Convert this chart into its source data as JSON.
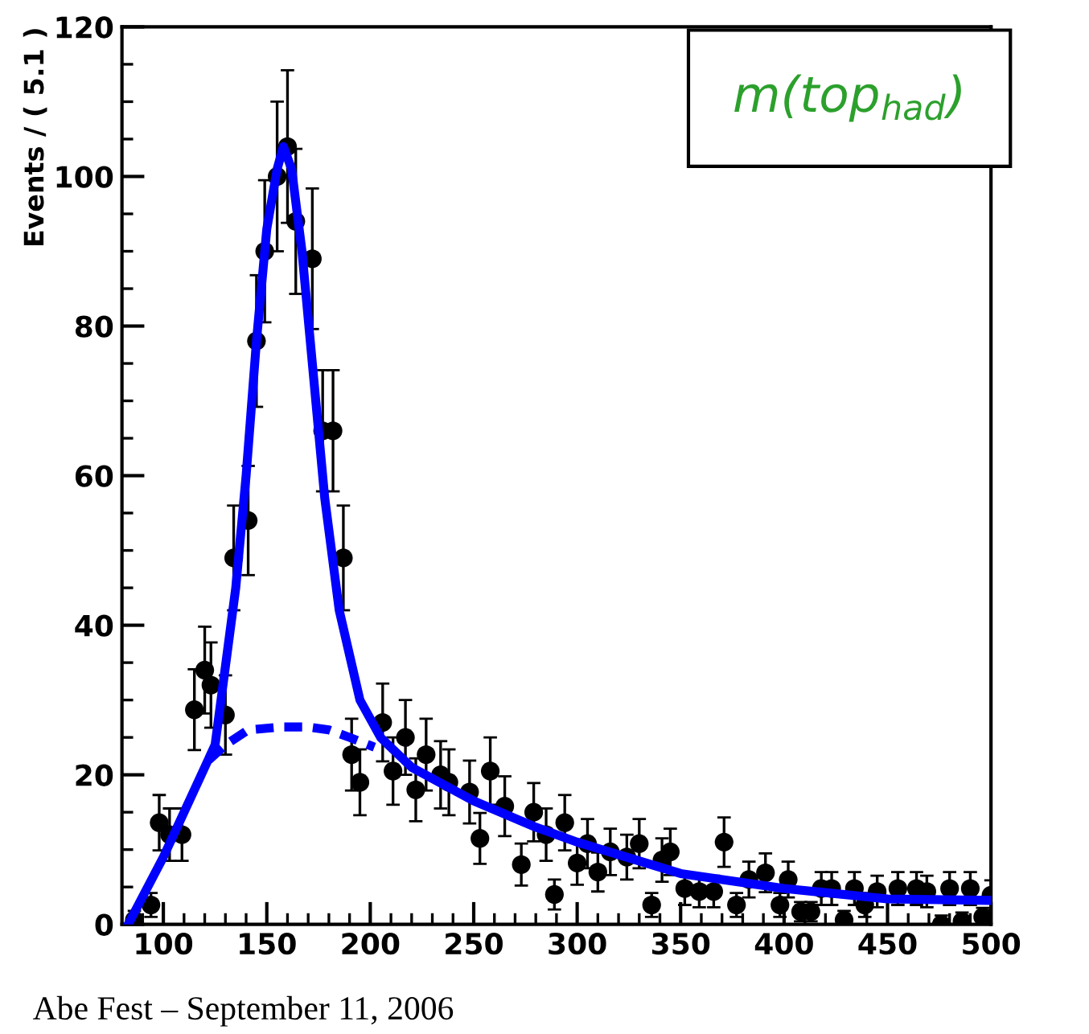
{
  "chart_data": {
    "type": "scatter",
    "title": "m(top$_{had}$)",
    "ylabel": "Events / ( 5.1 )",
    "annotations": [
      "Abe Fest – September 11, 2006"
    ],
    "xlim": [
      80,
      500
    ],
    "ylim": [
      0,
      120
    ],
    "xticks": [
      100,
      150,
      200,
      250,
      300,
      350,
      400,
      450,
      500
    ],
    "yticks": [
      0,
      20,
      40,
      60,
      80,
      100,
      120
    ],
    "grid": false,
    "legend": false,
    "series": [
      {
        "color": "#000000",
        "marker": "circle",
        "x": [
          86,
          94,
          98,
          103,
          109,
          115,
          120,
          123,
          130,
          134,
          141,
          145,
          149,
          155,
          160,
          164,
          172,
          177,
          182,
          187,
          191,
          195,
          206,
          211,
          217,
          222,
          227,
          234,
          238,
          248,
          253,
          258,
          265,
          273,
          279,
          285,
          289,
          294,
          300,
          305,
          310,
          316,
          324,
          330,
          336,
          341,
          345,
          352,
          359,
          366,
          371,
          377,
          383,
          391,
          398,
          402,
          408,
          413,
          418,
          423,
          429,
          434,
          439,
          445,
          455,
          464,
          469,
          476,
          480,
          486,
          490,
          496,
          500
        ],
        "values": [
          0.6,
          2.6,
          13.6,
          12,
          12,
          28.7,
          34,
          32,
          28,
          49,
          54,
          78,
          90,
          100,
          104,
          94,
          89,
          66,
          66,
          49,
          22.7,
          19,
          27,
          20.5,
          25,
          18,
          22.7,
          20,
          19,
          17.7,
          11.5,
          20.5,
          15.8,
          8,
          15,
          12,
          4,
          13.6,
          8.2,
          10.8,
          7,
          9.7,
          9,
          10.8,
          2.6,
          8.6,
          9.7,
          4.8,
          4.4,
          4.4,
          11,
          2.6,
          6,
          6.9,
          2.6,
          6,
          1.7,
          1.7,
          4.8,
          4.8,
          0.6,
          4.8,
          2.6,
          4.4,
          4.8,
          4.8,
          4.4,
          0,
          4.8,
          0.4,
          4.8,
          1,
          3.9
        ],
        "errors": [
          [
            0,
            1.8
          ],
          [
            1,
            4.2
          ],
          3.7,
          3.5,
          3.5,
          5.4,
          5.8,
          5.7,
          5.3,
          7,
          7.3,
          8.8,
          9.5,
          10,
          10.2,
          9.7,
          9.4,
          8.1,
          8.1,
          7,
          4.8,
          4.4,
          5.2,
          4.5,
          5,
          4.2,
          4.8,
          4.5,
          4.4,
          4.2,
          3.4,
          4.5,
          4,
          2.8,
          3.9,
          3.5,
          2,
          3.7,
          2.9,
          3.3,
          2.6,
          3.1,
          3,
          3.3,
          1.6,
          2.9,
          3.1,
          2.2,
          2.1,
          2.1,
          3.3,
          1.6,
          2.4,
          2.6,
          1.6,
          2.4,
          [
            0.4,
            3
          ],
          [
            0.4,
            3
          ],
          2.2,
          2.2,
          [
            0,
            1.8
          ],
          2.2,
          1.6,
          2.1,
          2.2,
          2.2,
          2.1,
          [
            0,
            1.2
          ],
          2.2,
          [
            0,
            1.6
          ],
          2.2,
          [
            0,
            2.2
          ],
          2
        ]
      },
      {
        "type": "line",
        "color": "#0000ff",
        "line_style": "solid",
        "marker": "none",
        "x": [
          83,
          100,
          115,
          125,
          135,
          140,
          145,
          150,
          155,
          158,
          162,
          167,
          172,
          178,
          185,
          195,
          205,
          220,
          250,
          280,
          300,
          350,
          400,
          450,
          500
        ],
        "values": [
          0,
          9,
          18,
          24,
          45,
          60,
          78,
          93,
          101,
          104,
          101,
          90,
          75,
          57,
          42,
          30,
          25,
          21,
          16.5,
          13,
          11,
          6.8,
          4.8,
          3.4,
          3.2
        ]
      },
      {
        "type": "line",
        "color": "#0000ff",
        "line_style": "dashed",
        "marker": "none",
        "x": [
          122,
          130,
          141,
          157,
          170,
          180,
          190,
          202
        ],
        "values": [
          22,
          24,
          26,
          26.4,
          26.4,
          26,
          25,
          23.7
        ]
      }
    ]
  }
}
